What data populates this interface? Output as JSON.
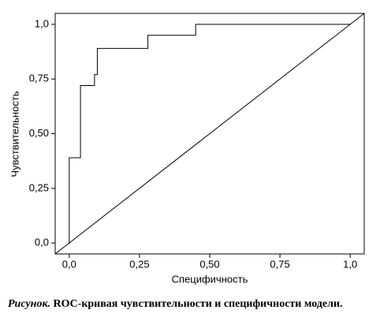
{
  "chart_data": {
    "type": "line",
    "xlabel": "Специфичность",
    "ylabel": "Чувствительность",
    "xlim": [
      -0.05,
      1.05
    ],
    "ylim": [
      -0.05,
      1.05
    ],
    "xticks": [
      {
        "value": 0,
        "label": "0,0"
      },
      {
        "value": 0.25,
        "label": "0,25"
      },
      {
        "value": 0.5,
        "label": "0,50"
      },
      {
        "value": 0.75,
        "label": "0,75"
      },
      {
        "value": 1,
        "label": "1,0"
      }
    ],
    "yticks": [
      {
        "value": 0,
        "label": "0,0"
      },
      {
        "value": 0.25,
        "label": "0,25"
      },
      {
        "value": 0.5,
        "label": "0,50"
      },
      {
        "value": 0.75,
        "label": "0,75"
      },
      {
        "value": 1,
        "label": "1,0"
      }
    ],
    "series": [
      {
        "color": "#000000",
        "x": [
          0,
          0,
          0.04,
          0.04,
          0.09,
          0.09,
          0.1,
          0.1,
          0.28,
          0.28,
          0.45,
          0.45,
          1.0
        ],
        "values": [
          0,
          0.39,
          0.39,
          0.72,
          0.72,
          0.77,
          0.77,
          0.89,
          0.89,
          0.95,
          0.95,
          1.0,
          1.0
        ]
      },
      {
        "color": "#000000",
        "x": [
          -0.05,
          1.05
        ],
        "values": [
          -0.05,
          1.05
        ]
      }
    ]
  },
  "caption": {
    "label": "Рисунок.",
    "text": "ROC-кривая чувствительности и специфичности модели."
  }
}
